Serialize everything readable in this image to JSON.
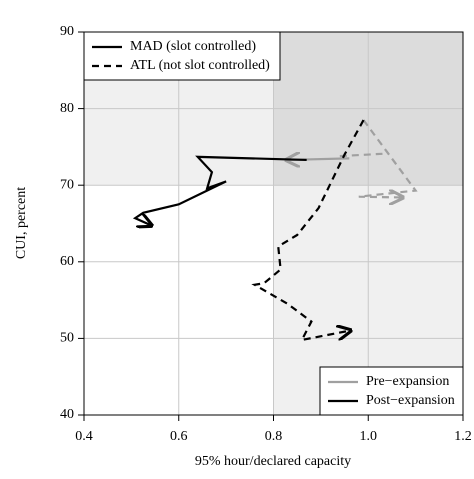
{
  "chart_data": {
    "type": "line",
    "xlabel": "95% hour/declared capacity",
    "ylabel": "CUI, percent",
    "xlim": [
      0.4,
      1.2
    ],
    "ylim": [
      40,
      90
    ],
    "xticks": [
      0.4,
      0.6,
      0.8,
      {
        "value": 1.0,
        "label": "1.0"
      },
      1.2
    ],
    "yticks": [
      40,
      50,
      60,
      70,
      80,
      90
    ],
    "grid": true,
    "series": [
      {
        "color": "#a0a0a0",
        "style": "solid",
        "x": [
          0.96,
          0.83
        ],
        "values": [
          73.5,
          73.3
        ]
      },
      {
        "color": "#000000",
        "style": "solid",
        "x": [
          0.87,
          0.64,
          0.67,
          0.66,
          0.7,
          0.6,
          0.525,
          0.508,
          0.54
        ],
        "values": [
          73.3,
          73.7,
          71.7,
          69.6,
          70.5,
          67.5,
          66.4,
          65.7,
          64.8
        ]
      },
      {
        "color": "#a0a0a0",
        "style": "dashed",
        "x": [
          0.94,
          1.03,
          null,
          0.99,
          1.1,
          0.98,
          1.07
        ],
        "values": [
          73.8,
          74.1,
          null,
          78.5,
          69.3,
          68.5,
          68.4
        ]
      },
      {
        "color": "#000000",
        "style": "dashed",
        "x": [
          0.99,
          0.95,
          0.895,
          0.85,
          0.81,
          0.815,
          0.78,
          0.76,
          0.83,
          0.88,
          0.86,
          0.96
        ],
        "values": [
          78.5,
          74,
          67,
          63.5,
          62,
          59,
          57.2,
          57,
          54.5,
          52.2,
          49.8,
          51
        ]
      }
    ],
    "legends": [
      {
        "position": "upper left",
        "entries": [
          {
            "label": "MAD (slot controlled)",
            "color": "#000000",
            "style": "solid"
          },
          {
            "label": "ATL (not slot controlled)",
            "color": "#000000",
            "style": "dashed"
          }
        ]
      },
      {
        "position": "lower right",
        "entries": [
          {
            "label": "Pre−expansion",
            "color": "#a0a0a0",
            "style": "solid"
          },
          {
            "label": "Post−expansion",
            "color": "#000000",
            "style": "solid"
          }
        ]
      }
    ]
  }
}
